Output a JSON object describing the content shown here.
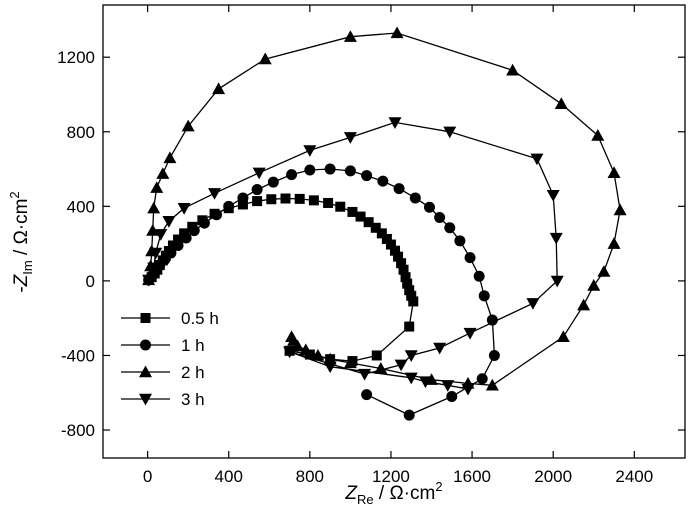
{
  "chart_data": {
    "type": "line",
    "xlabel": {
      "main": "Z",
      "sub": "Re",
      "unit": " / Ω·cm",
      "sup": "2"
    },
    "ylabel": {
      "prefix": "-",
      "main": "Z",
      "sub": "Im",
      "unit": " / Ω·cm",
      "sup": "2"
    },
    "xlim": [
      -220,
      2650
    ],
    "ylim": [
      -950,
      1480
    ],
    "x_ticks": [
      0,
      400,
      800,
      1200,
      1600,
      2000,
      2400
    ],
    "y_ticks": [
      -800,
      -400,
      0,
      400,
      800,
      1200
    ],
    "legend_position": "bottom-left",
    "colors": {
      "line": "#000000",
      "marker": "#000000"
    },
    "series": [
      {
        "name": "0.5 h",
        "marker": "square",
        "points": [
          [
            5,
            5
          ],
          [
            20,
            20
          ],
          [
            35,
            40
          ],
          [
            48,
            60
          ],
          [
            60,
            85
          ],
          [
            75,
            110
          ],
          [
            90,
            135
          ],
          [
            105,
            160
          ],
          [
            125,
            190
          ],
          [
            150,
            222
          ],
          [
            180,
            255
          ],
          [
            220,
            290
          ],
          [
            270,
            325
          ],
          [
            330,
            360
          ],
          [
            400,
            390
          ],
          [
            470,
            410
          ],
          [
            540,
            428
          ],
          [
            610,
            438
          ],
          [
            680,
            442
          ],
          [
            750,
            440
          ],
          [
            820,
            432
          ],
          [
            890,
            418
          ],
          [
            950,
            398
          ],
          [
            1010,
            370
          ],
          [
            1050,
            345
          ],
          [
            1090,
            315
          ],
          [
            1125,
            285
          ],
          [
            1155,
            255
          ],
          [
            1180,
            225
          ],
          [
            1200,
            195
          ],
          [
            1220,
            162
          ],
          [
            1235,
            130
          ],
          [
            1250,
            95
          ],
          [
            1262,
            60
          ],
          [
            1272,
            20
          ],
          [
            1280,
            -15
          ],
          [
            1290,
            -50
          ],
          [
            1300,
            -80
          ],
          [
            1310,
            -110
          ],
          [
            1290,
            -245
          ],
          [
            1130,
            -400
          ],
          [
            1010,
            -430
          ],
          [
            900,
            -420
          ],
          [
            800,
            -395
          ],
          [
            700,
            -375
          ]
        ]
      },
      {
        "name": "1 h",
        "marker": "circle",
        "points": [
          [
            5,
            5
          ],
          [
            20,
            25
          ],
          [
            40,
            55
          ],
          [
            60,
            85
          ],
          [
            85,
            115
          ],
          [
            115,
            150
          ],
          [
            150,
            190
          ],
          [
            190,
            230
          ],
          [
            230,
            270
          ],
          [
            280,
            310
          ],
          [
            340,
            355
          ],
          [
            400,
            400
          ],
          [
            470,
            445
          ],
          [
            540,
            490
          ],
          [
            620,
            530
          ],
          [
            710,
            570
          ],
          [
            800,
            595
          ],
          [
            900,
            600
          ],
          [
            1000,
            590
          ],
          [
            1080,
            565
          ],
          [
            1160,
            535
          ],
          [
            1240,
            495
          ],
          [
            1320,
            445
          ],
          [
            1390,
            395
          ],
          [
            1440,
            340
          ],
          [
            1490,
            285
          ],
          [
            1540,
            215
          ],
          [
            1590,
            125
          ],
          [
            1635,
            25
          ],
          [
            1660,
            -80
          ],
          [
            1700,
            -210
          ],
          [
            1710,
            -400
          ],
          [
            1650,
            -525
          ],
          [
            1500,
            -620
          ],
          [
            1290,
            -720
          ],
          [
            1080,
            -610
          ]
        ]
      },
      {
        "name": "2 h",
        "marker": "triangle-up",
        "points": [
          [
            5,
            5
          ],
          [
            15,
            80
          ],
          [
            20,
            160
          ],
          [
            25,
            270
          ],
          [
            30,
            390
          ],
          [
            45,
            500
          ],
          [
            75,
            575
          ],
          [
            110,
            660
          ],
          [
            200,
            830
          ],
          [
            350,
            1030
          ],
          [
            580,
            1190
          ],
          [
            1000,
            1310
          ],
          [
            1230,
            1330
          ],
          [
            1800,
            1130
          ],
          [
            2040,
            950
          ],
          [
            2220,
            780
          ],
          [
            2300,
            580
          ],
          [
            2330,
            380
          ],
          [
            2300,
            200
          ],
          [
            2250,
            50
          ],
          [
            2200,
            -25
          ],
          [
            2150,
            -130
          ],
          [
            2050,
            -300
          ],
          [
            1700,
            -560
          ],
          [
            1580,
            -550
          ],
          [
            1400,
            -530
          ],
          [
            1150,
            -470
          ],
          [
            1000,
            -440
          ],
          [
            900,
            -420
          ],
          [
            840,
            -400
          ],
          [
            780,
            -370
          ],
          [
            740,
            -350
          ],
          [
            720,
            -320
          ],
          [
            710,
            -300
          ]
        ]
      },
      {
        "name": "3 h",
        "marker": "triangle-down",
        "points": [
          [
            5,
            5
          ],
          [
            30,
            70
          ],
          [
            40,
            150
          ],
          [
            65,
            250
          ],
          [
            105,
            320
          ],
          [
            180,
            390
          ],
          [
            330,
            470
          ],
          [
            550,
            580
          ],
          [
            800,
            700
          ],
          [
            1000,
            770
          ],
          [
            1220,
            850
          ],
          [
            1490,
            800
          ],
          [
            1920,
            655
          ],
          [
            2000,
            460
          ],
          [
            2015,
            230
          ],
          [
            2020,
            0
          ],
          [
            1900,
            -120
          ],
          [
            1590,
            -280
          ],
          [
            1440,
            -360
          ],
          [
            1300,
            -400
          ],
          [
            1250,
            -450
          ],
          [
            1070,
            -500
          ],
          [
            700,
            -380
          ],
          [
            900,
            -460
          ],
          [
            1300,
            -520
          ],
          [
            1370,
            -540
          ],
          [
            1480,
            -560
          ],
          [
            1580,
            -580
          ]
        ]
      }
    ]
  }
}
